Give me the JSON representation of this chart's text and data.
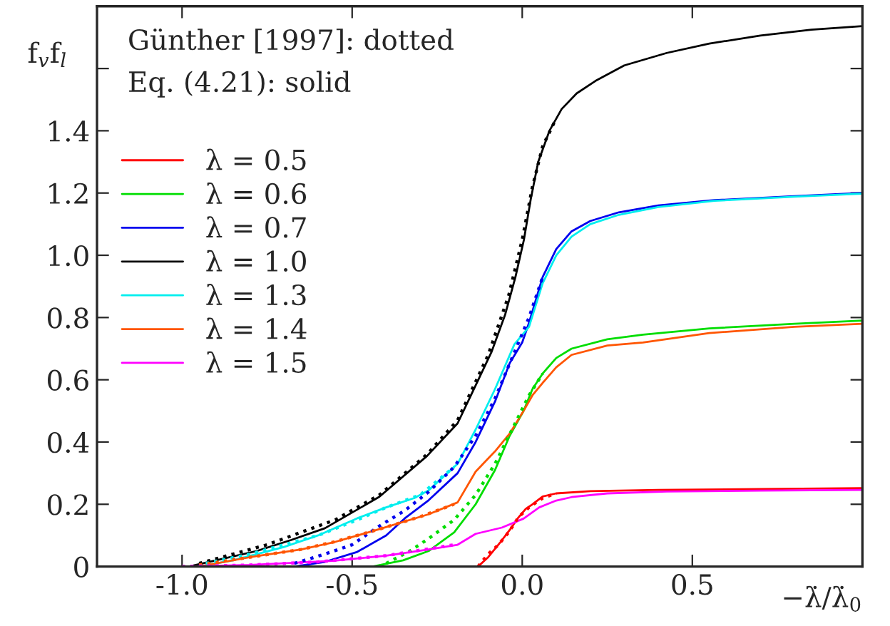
{
  "chart_data": {
    "type": "line",
    "ylabel": "f$_{v}$f$_{l}$",
    "xlabel": "−λ̇/λ̇$_{0}$",
    "annotations": [
      "Günther [1997]: dotted",
      "Eq. (4.21): solid"
    ],
    "xlim": [
      -1.25,
      1.0
    ],
    "ylim": [
      0,
      1.8
    ],
    "xticks": [
      {
        "value": -1.0,
        "label": "-1.0"
      },
      {
        "value": -0.5,
        "label": "-0.5"
      },
      {
        "value": 0.0,
        "label": "0.0"
      },
      {
        "value": 0.5,
        "label": "0.5"
      }
    ],
    "yticks": [
      0,
      0.2,
      0.4,
      0.6,
      0.8,
      {
        "value": 1.0,
        "label": "1.0"
      },
      1.2,
      1.4,
      {
        "value": 1.6,
        "label": null
      }
    ],
    "grid": false,
    "legend": "top left",
    "marker": "none",
    "series": [
      {
        "name": "λ = 0.5",
        "color": "#ff0000",
        "line_style": "solid",
        "x": [
          -0.13,
          -0.1,
          -0.065,
          -0.035,
          -0.013,
          0.01,
          0.03,
          0.06,
          0.1,
          0.2,
          0.4,
          0.7,
          1.0
        ],
        "values": [
          0,
          0.03,
          0.077,
          0.12,
          0.155,
          0.185,
          0.2,
          0.225,
          0.235,
          0.242,
          0.246,
          0.249,
          0.252
        ]
      },
      {
        "name": "λ = 0.6",
        "color": "#00dd00",
        "line_style": "solid",
        "x": [
          -0.44,
          -0.35,
          -0.275,
          -0.2,
          -0.137,
          -0.08,
          -0.037,
          0.004,
          0.03,
          0.06,
          0.1,
          0.145,
          0.25,
          0.355,
          0.55,
          0.8,
          1.0
        ],
        "values": [
          0,
          0.02,
          0.05,
          0.11,
          0.2,
          0.31,
          0.42,
          0.5,
          0.57,
          0.62,
          0.67,
          0.7,
          0.73,
          0.745,
          0.765,
          0.78,
          0.79
        ]
      },
      {
        "name": "λ = 0.7",
        "color": "#0000ee",
        "line_style": "solid",
        "x": [
          -0.67,
          -0.58,
          -0.485,
          -0.4,
          -0.345,
          -0.275,
          -0.19,
          -0.137,
          -0.08,
          -0.037,
          0.0,
          0.019,
          0.06,
          0.1,
          0.145,
          0.2,
          0.284,
          0.4,
          0.565,
          0.8,
          1.0
        ],
        "values": [
          0,
          0.015,
          0.047,
          0.1,
          0.155,
          0.213,
          0.3,
          0.4,
          0.53,
          0.653,
          0.72,
          0.78,
          0.93,
          1.02,
          1.077,
          1.11,
          1.138,
          1.16,
          1.177,
          1.19,
          1.2
        ]
      },
      {
        "name": "λ = 1.0",
        "color": "#000000",
        "line_style": "solid",
        "x": [
          -0.98,
          -0.9,
          -0.78,
          -0.68,
          -0.58,
          -0.42,
          -0.28,
          -0.19,
          -0.14,
          -0.09,
          -0.05,
          -0.02,
          0.005,
          0.025,
          0.047,
          0.08,
          0.116,
          0.16,
          0.215,
          0.3,
          0.425,
          0.55,
          0.7,
          0.85,
          1.0
        ],
        "values": [
          0,
          0.02,
          0.05,
          0.085,
          0.123,
          0.224,
          0.355,
          0.46,
          0.575,
          0.69,
          0.81,
          0.93,
          1.05,
          1.18,
          1.3,
          1.4,
          1.47,
          1.52,
          1.56,
          1.61,
          1.65,
          1.68,
          1.706,
          1.725,
          1.736
        ]
      },
      {
        "name": "λ = 1.3",
        "color": "#00eeee",
        "line_style": "solid",
        "x": [
          -0.95,
          -0.85,
          -0.7,
          -0.6,
          -0.485,
          -0.4,
          -0.317,
          -0.275,
          -0.19,
          -0.137,
          -0.08,
          -0.023,
          0.02,
          0.06,
          0.1,
          0.145,
          0.2,
          0.284,
          0.4,
          0.565,
          0.8,
          1.0
        ],
        "values": [
          0,
          0.02,
          0.063,
          0.1,
          0.155,
          0.19,
          0.22,
          0.245,
          0.33,
          0.44,
          0.57,
          0.714,
          0.77,
          0.91,
          1.0,
          1.06,
          1.1,
          1.13,
          1.155,
          1.175,
          1.188,
          1.198
        ]
      },
      {
        "name": "λ = 1.4",
        "color": "#ff5500",
        "line_style": "solid",
        "x": [
          -0.95,
          -0.8,
          -0.65,
          -0.557,
          -0.42,
          -0.275,
          -0.19,
          -0.137,
          -0.08,
          -0.037,
          0.004,
          0.03,
          0.06,
          0.1,
          0.145,
          0.25,
          0.355,
          0.55,
          0.8,
          1.0
        ],
        "values": [
          0,
          0.03,
          0.055,
          0.077,
          0.12,
          0.168,
          0.206,
          0.305,
          0.37,
          0.427,
          0.5,
          0.55,
          0.59,
          0.64,
          0.68,
          0.71,
          0.72,
          0.75,
          0.77,
          0.78
        ]
      },
      {
        "name": "λ = 1.5",
        "color": "#ff00ff",
        "line_style": "solid",
        "x": [
          -1.0,
          -0.8,
          -0.557,
          -0.4,
          -0.275,
          -0.19,
          -0.137,
          -0.06,
          0.004,
          0.05,
          0.1,
          0.145,
          0.25,
          0.425,
          0.7,
          1.0
        ],
        "values": [
          0,
          0.005,
          0.018,
          0.035,
          0.055,
          0.07,
          0.105,
          0.125,
          0.154,
          0.19,
          0.212,
          0.223,
          0.235,
          0.241,
          0.244,
          0.246
        ]
      },
      {
        "color": "#ff0000",
        "line_style": "dotted",
        "x": [
          -0.13,
          -0.1,
          -0.07,
          -0.04,
          -0.01,
          0.02,
          0.06,
          0.1
        ],
        "values": [
          0.0,
          0.04,
          0.07,
          0.11,
          0.16,
          0.19,
          0.22,
          0.235
        ]
      },
      {
        "color": "#00dd00",
        "line_style": "dotted",
        "x": [
          -0.4,
          -0.33,
          -0.275,
          -0.2,
          -0.137,
          -0.08,
          -0.03,
          0.02,
          0.06
        ],
        "values": [
          0.01,
          0.05,
          0.09,
          0.15,
          0.23,
          0.33,
          0.44,
          0.55,
          0.62
        ]
      },
      {
        "color": "#0000ee",
        "line_style": "dotted",
        "x": [
          -0.67,
          -0.58,
          -0.5,
          -0.42,
          -0.345,
          -0.275,
          -0.2,
          -0.137,
          -0.08,
          -0.03,
          0.02,
          0.06
        ],
        "values": [
          0.01,
          0.04,
          0.07,
          0.13,
          0.18,
          0.24,
          0.32,
          0.42,
          0.54,
          0.67,
          0.8,
          0.93
        ]
      },
      {
        "color": "#000000",
        "line_style": "dotted",
        "x": [
          -0.95,
          -0.85,
          -0.75,
          -0.65,
          -0.55,
          -0.42,
          -0.28,
          -0.19,
          -0.1,
          -0.04,
          0.0,
          0.03,
          0.06,
          0.1
        ],
        "values": [
          0.01,
          0.04,
          0.07,
          0.11,
          0.15,
          0.23,
          0.36,
          0.47,
          0.68,
          0.87,
          1.05,
          1.22,
          1.35,
          1.44
        ]
      },
      {
        "color": "#00eeee",
        "line_style": "dotted",
        "x": [
          -0.93,
          -0.8,
          -0.7,
          -0.6,
          -0.485,
          -0.4,
          -0.3,
          -0.2
        ],
        "values": [
          0.01,
          0.04,
          0.07,
          0.1,
          0.15,
          0.19,
          0.23,
          0.32
        ]
      },
      {
        "color": "#ff5500",
        "line_style": "dotted",
        "x": [
          -0.95,
          -0.8,
          -0.65,
          -0.55,
          -0.42,
          -0.3,
          -0.2
        ],
        "values": [
          0.005,
          0.03,
          0.055,
          0.08,
          0.12,
          0.16,
          0.2
        ]
      },
      {
        "color": "#ff00ff",
        "line_style": "dotted",
        "x": [
          -1.0,
          -0.8,
          -0.6,
          -0.4,
          -0.2
        ],
        "values": [
          0,
          0.005,
          0.015,
          0.035,
          0.07
        ]
      }
    ]
  }
}
